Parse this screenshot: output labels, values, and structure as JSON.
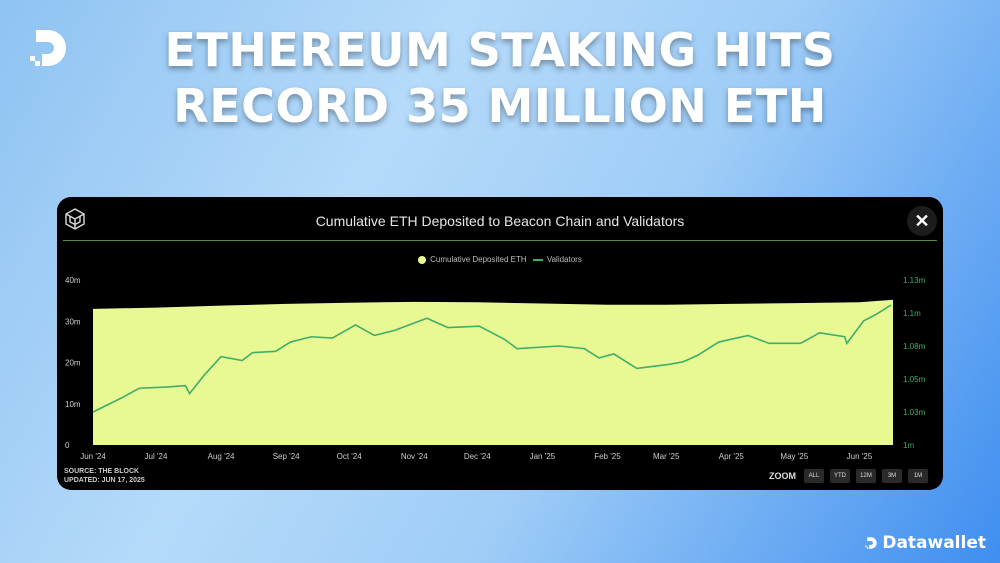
{
  "headline": {
    "line1": "ETHEREUM STAKING HITS",
    "line2": "RECORD 35 MILLION ETH"
  },
  "brand": {
    "name": "Datawallet",
    "logo_icon": "datawallet-d-logo"
  },
  "card": {
    "close_label": "✕",
    "source": "SOURCE: THE BLOCK",
    "updated": "UPDATED: JUN 17, 2025",
    "zoom_label": "ZOOM",
    "zoom_buttons": [
      "ALL",
      "YTD",
      "12M",
      "3M",
      "1M"
    ]
  },
  "chart_data": {
    "type": "area",
    "title": "Cumulative ETH Deposited to Beacon Chain and Validators",
    "legend": [
      "Cumulative Deposited ETH",
      "Validators"
    ],
    "legend_placement": "top",
    "grid": false,
    "colors": {
      "area": "#e8f994",
      "line": "#3fae6a",
      "right_axis": "#3fae6a",
      "rule": "#5d8a45"
    },
    "xlim": [
      "2024-06-01",
      "2025-06-17"
    ],
    "x_ticks": [
      {
        "date": "2024-06-01",
        "label": "Jun '24"
      },
      {
        "date": "2024-07-01",
        "label": "Jul '24"
      },
      {
        "date": "2024-08-01",
        "label": "Aug '24"
      },
      {
        "date": "2024-09-01",
        "label": "Sep '24"
      },
      {
        "date": "2024-10-01",
        "label": "Oct '24"
      },
      {
        "date": "2024-11-01",
        "label": "Nov '24"
      },
      {
        "date": "2024-12-01",
        "label": "Dec '24"
      },
      {
        "date": "2025-01-01",
        "label": "Jan '25"
      },
      {
        "date": "2025-02-01",
        "label": "Feb '25"
      },
      {
        "date": "2025-03-01",
        "label": "Mar '25"
      },
      {
        "date": "2025-04-01",
        "label": "Apr '25"
      },
      {
        "date": "2025-05-01",
        "label": "May '25"
      },
      {
        "date": "2025-06-01",
        "label": "Jun '25"
      }
    ],
    "y_left": {
      "ylim": [
        0,
        40000000
      ],
      "ticks": [
        {
          "value": 0,
          "label": "0"
        },
        {
          "value": 10000000,
          "label": "10m"
        },
        {
          "value": 20000000,
          "label": "20m"
        },
        {
          "value": 30000000,
          "label": "30m"
        },
        {
          "value": 40000000,
          "label": "40m"
        }
      ]
    },
    "y_right": {
      "ylim": [
        1000000,
        1125000
      ],
      "ticks": [
        {
          "value": 1000000,
          "label": "1m"
        },
        {
          "value": 1025000,
          "label": "1.03m"
        },
        {
          "value": 1050000,
          "label": "1.05m"
        },
        {
          "value": 1075000,
          "label": "1.08m"
        },
        {
          "value": 1100000,
          "label": "1.1m"
        },
        {
          "value": 1125000,
          "label": "1.13m"
        }
      ]
    },
    "series": [
      {
        "name": "Cumulative Deposited ETH",
        "axis": "left",
        "type": "area",
        "points": [
          [
            "2024-06-01",
            33000000
          ],
          [
            "2024-07-01",
            33300000
          ],
          [
            "2024-08-01",
            33800000
          ],
          [
            "2024-09-01",
            34200000
          ],
          [
            "2024-10-01",
            34500000
          ],
          [
            "2024-11-01",
            34700000
          ],
          [
            "2024-12-01",
            34600000
          ],
          [
            "2025-01-01",
            34300000
          ],
          [
            "2025-02-01",
            34000000
          ],
          [
            "2025-03-01",
            34000000
          ],
          [
            "2025-04-01",
            34200000
          ],
          [
            "2025-05-01",
            34400000
          ],
          [
            "2025-06-01",
            34600000
          ],
          [
            "2025-06-17",
            35200000
          ]
        ]
      },
      {
        "name": "Validators",
        "axis": "right",
        "type": "line",
        "points": [
          [
            "2024-06-01",
            1025000
          ],
          [
            "2024-06-15",
            1036000
          ],
          [
            "2024-06-23",
            1043000
          ],
          [
            "2024-07-07",
            1044000
          ],
          [
            "2024-07-15",
            1045000
          ],
          [
            "2024-07-17",
            1039000
          ],
          [
            "2024-07-24",
            1053000
          ],
          [
            "2024-08-01",
            1067000
          ],
          [
            "2024-08-11",
            1064000
          ],
          [
            "2024-08-16",
            1070000
          ],
          [
            "2024-08-27",
            1071000
          ],
          [
            "2024-09-03",
            1078000
          ],
          [
            "2024-09-13",
            1082000
          ],
          [
            "2024-09-23",
            1081000
          ],
          [
            "2024-10-04",
            1091000
          ],
          [
            "2024-10-13",
            1083000
          ],
          [
            "2024-10-23",
            1087000
          ],
          [
            "2024-11-07",
            1096000
          ],
          [
            "2024-11-17",
            1089000
          ],
          [
            "2024-12-02",
            1090000
          ],
          [
            "2024-12-14",
            1080000
          ],
          [
            "2024-12-20",
            1073000
          ],
          [
            "2025-01-09",
            1075000
          ],
          [
            "2025-01-21",
            1073000
          ],
          [
            "2025-01-28",
            1066000
          ],
          [
            "2025-02-04",
            1069000
          ],
          [
            "2025-02-15",
            1058000
          ],
          [
            "2025-03-02",
            1061000
          ],
          [
            "2025-03-09",
            1063000
          ],
          [
            "2025-03-16",
            1068000
          ],
          [
            "2025-03-26",
            1078000
          ],
          [
            "2025-04-09",
            1083000
          ],
          [
            "2025-04-19",
            1077000
          ],
          [
            "2025-05-04",
            1077000
          ],
          [
            "2025-05-13",
            1085000
          ],
          [
            "2025-05-25",
            1082000
          ],
          [
            "2025-05-26",
            1077000
          ],
          [
            "2025-06-03",
            1094000
          ],
          [
            "2025-06-09",
            1099000
          ],
          [
            "2025-06-16",
            1106000
          ]
        ]
      }
    ]
  }
}
